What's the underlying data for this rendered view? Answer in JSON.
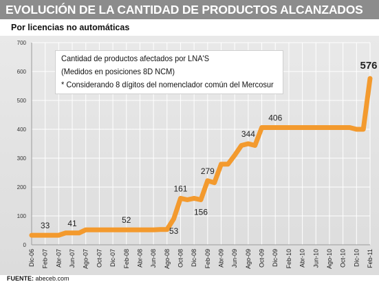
{
  "header": {
    "title": "EVOLUCIÓN DE LA CANTIDAD DE PRODUCTOS ALCANZADOS",
    "subtitle": "Por licencias no automáticas"
  },
  "annotation": {
    "lines": [
      "Cantidad de productos afectados por LNA'S",
      "(Medidos en posiciones 8D NCM)",
      "* Considerando 8 dígitos del nomenclador común del Mercosur"
    ]
  },
  "source": {
    "label": "FUENTE:",
    "value": "abeceb.com"
  },
  "colors": {
    "line": "#f39a2e",
    "title_bar": "#8c8c8c",
    "grid": "#ffffff",
    "panel": "#e2e2e2"
  },
  "chart_data": {
    "type": "line",
    "title": "EVOLUCIÓN DE LA CANTIDAD DE PRODUCTOS ALCANZADOS",
    "subtitle": "Por licencias no automáticas",
    "xlabel": "",
    "ylabel": "",
    "ylim": [
      0,
      700
    ],
    "yticks": [
      0,
      100,
      200,
      300,
      400,
      500,
      600,
      700
    ],
    "grid": true,
    "legend": "none",
    "tick_labels": [
      "Dic-06",
      "Feb-07",
      "Abr-07",
      "Jun-07",
      "Ago-07",
      "Oct-07",
      "Dic-07",
      "Feb-08",
      "Abr-08",
      "Jun-08",
      "Ago-08",
      "Oct-08",
      "Dic-08",
      "Feb-09",
      "Abr-09",
      "Jun-09",
      "Ago-09",
      "Oct-09",
      "Dic-09",
      "Feb-10",
      "Abr-10",
      "Jun-10",
      "Ago-10",
      "Oct-10",
      "Dic-10",
      "Feb-11"
    ],
    "series": [
      {
        "values": [
          [
            "Dic-06",
            33
          ],
          [
            "Ene-07",
            33
          ],
          [
            "Feb-07",
            33
          ],
          [
            "Mar-07",
            33
          ],
          [
            "Abr-07",
            33
          ],
          [
            "May-07",
            41
          ],
          [
            "Jun-07",
            41
          ],
          [
            "Jul-07",
            41
          ],
          [
            "Ago-07",
            52
          ],
          [
            "Sep-07",
            52
          ],
          [
            "Oct-07",
            52
          ],
          [
            "Nov-07",
            52
          ],
          [
            "Dic-07",
            52
          ],
          [
            "Ene-08",
            52
          ],
          [
            "Feb-08",
            52
          ],
          [
            "Mar-08",
            52
          ],
          [
            "Abr-08",
            52
          ],
          [
            "May-08",
            52
          ],
          [
            "Jun-08",
            52
          ],
          [
            "Jul-08",
            53
          ],
          [
            "Ago-08",
            53
          ],
          [
            "Sep-08",
            90
          ],
          [
            "Oct-08",
            161
          ],
          [
            "Nov-08",
            156
          ],
          [
            "Dic-08",
            161
          ],
          [
            "Ene-09",
            156
          ],
          [
            "Feb-09",
            222
          ],
          [
            "Mar-09",
            215
          ],
          [
            "Abr-09",
            279
          ],
          [
            "May-09",
            279
          ],
          [
            "Jun-09",
            310
          ],
          [
            "Jul-09",
            344
          ],
          [
            "Ago-09",
            350
          ],
          [
            "Sep-09",
            344
          ],
          [
            "Oct-09",
            406
          ],
          [
            "Nov-09",
            406
          ],
          [
            "Dic-09",
            406
          ],
          [
            "Ene-10",
            406
          ],
          [
            "Feb-10",
            406
          ],
          [
            "Mar-10",
            406
          ],
          [
            "Abr-10",
            406
          ],
          [
            "May-10",
            406
          ],
          [
            "Jun-10",
            406
          ],
          [
            "Jul-10",
            406
          ],
          [
            "Ago-10",
            406
          ],
          [
            "Sep-10",
            406
          ],
          [
            "Oct-10",
            406
          ],
          [
            "Nov-10",
            406
          ],
          [
            "Dic-10",
            400
          ],
          [
            "Ene-11",
            400
          ],
          [
            "Feb-11",
            576
          ]
        ]
      }
    ],
    "data_labels": [
      {
        "x": "Feb-07",
        "value": "33"
      },
      {
        "x": "Jun-07",
        "value": "41"
      },
      {
        "x": "Feb-08",
        "value": "52"
      },
      {
        "x": "Sep-08",
        "value": "53"
      },
      {
        "x": "Oct-08",
        "value": "161"
      },
      {
        "x": "Ene-09",
        "value": "156"
      },
      {
        "x": "Feb-09",
        "value": "279"
      },
      {
        "x": "Ago-09",
        "value": "344"
      },
      {
        "x": "Dic-09",
        "value": "406"
      },
      {
        "x": "Feb-11",
        "value": "576"
      }
    ]
  }
}
